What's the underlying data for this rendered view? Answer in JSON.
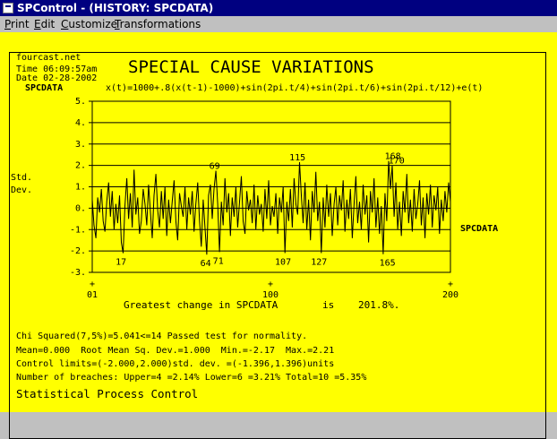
{
  "window": {
    "title": "SPControl - (HISTORY: SPCDATA)"
  },
  "menu": [
    {
      "underline": "P",
      "rest": "rint"
    },
    {
      "underline": "E",
      "rest": "dit"
    },
    {
      "underline": "C",
      "rest": "ustomize"
    },
    {
      "underline": "T",
      "rest": "ransformations"
    }
  ],
  "header": {
    "source": "fourcast.net",
    "time": "Time 06:09:57am",
    "date": "Date 02-28-2002",
    "title": "SPECIAL CAUSE VARIATIONS",
    "series_label": "SPCDATA",
    "formula": "x(t)=1000+.8(x(t-1)-1000)+sin(2pi.t/4)+sin(2pi.t/6)+sin(2pi.t/12)+e(t)"
  },
  "chart_data": {
    "type": "line",
    "ylabel_line1": "Std.",
    "ylabel_line2": "Dev.",
    "series_label": "SPCDATA",
    "ylim": [
      -3,
      5
    ],
    "yticks": [
      "5.",
      "4.",
      "3.",
      "2.",
      "1.",
      "0.",
      "-1.",
      "-2.",
      "-3."
    ],
    "ytick_values": [
      5,
      4,
      3,
      2,
      1,
      0,
      -1,
      -2,
      -3
    ],
    "xticks": [
      "01",
      "100",
      "200"
    ],
    "xtick_values": [
      1,
      100,
      200
    ],
    "xlim": [
      1,
      200
    ],
    "breach_labels": [
      {
        "label": "69",
        "x": 69,
        "y": 1.75,
        "side": "upper"
      },
      {
        "label": "115",
        "x": 115,
        "y": 2.15,
        "side": "upper"
      },
      {
        "label": "168",
        "x": 168,
        "y": 2.21,
        "side": "upper"
      },
      {
        "label": "170",
        "x": 170,
        "y": 2.0,
        "side": "upper"
      },
      {
        "label": "17",
        "x": 17,
        "y": -2.1,
        "side": "lower"
      },
      {
        "label": "64",
        "x": 64,
        "y": -2.17,
        "side": "lower"
      },
      {
        "label": "71",
        "x": 71,
        "y": -2.05,
        "side": "lower"
      },
      {
        "label": "107",
        "x": 107,
        "y": -2.1,
        "side": "lower"
      },
      {
        "label": "127",
        "x": 127,
        "y": -2.1,
        "side": "lower"
      },
      {
        "label": "165",
        "x": 165,
        "y": -2.15,
        "side": "lower"
      }
    ],
    "series": [
      {
        "values": [
          0.4,
          -0.8,
          -1.4,
          0.5,
          -0.2,
          0.9,
          -0.6,
          -1.1,
          0.3,
          1.2,
          -0.4,
          0.8,
          -1.0,
          0.2,
          -0.7,
          0.6,
          -1.6,
          -2.1,
          0.1,
          1.4,
          -0.5,
          0.7,
          -0.9,
          1.8,
          -0.3,
          0.5,
          -1.2,
          -0.6,
          0.9,
          0.2,
          -0.8,
          1.1,
          -0.2,
          -1.4,
          0.6,
          1.6,
          -0.1,
          -0.9,
          0.8,
          -0.5,
          1.0,
          -1.3,
          0.4,
          -0.7,
          0.3,
          1.3,
          -0.6,
          -1.5,
          0.7,
          0.1,
          -0.4,
          1.0,
          -1.0,
          0.5,
          -0.3,
          0.8,
          -1.1,
          0.2,
          1.2,
          -0.6,
          -1.8,
          0.4,
          -0.9,
          -2.17,
          0.6,
          1.1,
          -0.5,
          0.9,
          1.75,
          0.2,
          -2.05,
          0.3,
          -0.8,
          1.4,
          -0.2,
          0.7,
          -1.3,
          0.5,
          -0.4,
          1.0,
          -0.9,
          0.3,
          1.5,
          -0.6,
          -1.2,
          0.8,
          -0.1,
          0.4,
          -0.7,
          1.1,
          -1.0,
          0.6,
          -0.3,
          0.2,
          -1.1,
          0.9,
          -0.5,
          1.3,
          -0.8,
          0.1,
          -0.4,
          0.7,
          -1.2,
          0.5,
          -0.2,
          1.0,
          -2.1,
          0.3,
          -0.6,
          0.9,
          -0.9,
          1.4,
          0.2,
          -0.3,
          2.15,
          0.6,
          -0.7,
          1.2,
          -1.0,
          0.4,
          -1.5,
          0.8,
          -0.2,
          1.7,
          -0.6,
          0.3,
          -2.1,
          0.5,
          -0.9,
          1.1,
          -0.4,
          0.7,
          -1.3,
          0.2,
          1.0,
          -0.8,
          0.6,
          -0.1,
          1.3,
          -1.1,
          0.4,
          -0.5,
          0.9,
          -1.4,
          0.2,
          1.5,
          -0.7,
          0.3,
          -1.0,
          1.1,
          -0.3,
          0.6,
          -1.6,
          0.8,
          -0.2,
          1.4,
          -0.9,
          0.5,
          -1.2,
          0.1,
          -2.15,
          0.7,
          -0.6,
          2.21,
          0.9,
          2.0,
          -0.4,
          1.2,
          -1.0,
          0.3,
          -1.3,
          0.8,
          -0.2,
          1.6,
          -0.7,
          0.4,
          -1.1,
          0.9,
          -0.5,
          0.2,
          1.3,
          -0.8,
          0.5,
          -1.4,
          0.7,
          -0.3,
          1.1,
          -0.9,
          0.6,
          -0.1,
          1.0,
          -1.2,
          0.4,
          -0.6,
          0.8,
          -0.2,
          1.2,
          0.3
        ]
      }
    ]
  },
  "footer": {
    "greatest_change_text": "Greatest change in SPCDATA",
    "is_text": "is",
    "greatest_change_value": "201.8%.",
    "chi": "Chi Squared(7,5%)=5.041<=14 Passed test for normality.",
    "stats": "Mean=0.000  Root Mean Sq. Dev.=1.000  Min.=-2.17  Max.=2.21",
    "limits": "Control limits=(-2.000,2.000)std. dev. =(-1.396,1.396)units",
    "breaches": "Number of breaches: Upper=4 =2.14% Lower=6 =3.21% Total=10 =5.35%",
    "spc": "Statistical Process Control"
  }
}
